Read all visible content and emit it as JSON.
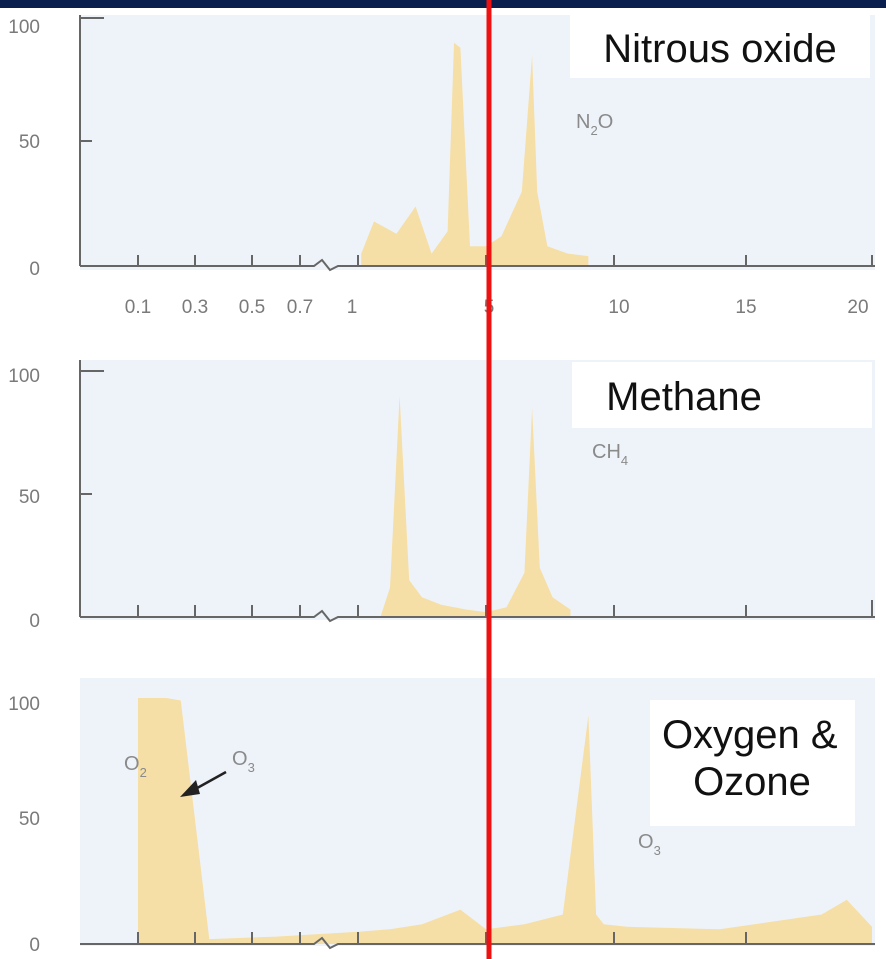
{
  "colors": {
    "band": "#f6dfa6",
    "marker": "#ee1111",
    "background": "#eef3fa",
    "top_band": "#0b1f4f"
  },
  "chart_data": [
    {
      "type": "area",
      "title": "Nitrous oxide",
      "formula": {
        "base": "N",
        "sub": "2",
        "tail": "O"
      },
      "yticks": [
        "0",
        "50",
        "100"
      ],
      "xticks": [
        "0.1",
        "0.3",
        "0.5",
        "0.7",
        "1",
        "5",
        "10",
        "15",
        "20"
      ],
      "ylim": [
        0,
        100
      ],
      "x": [
        1.1,
        1.5,
        2.2,
        2.8,
        3.3,
        3.8,
        4.0,
        4.2,
        4.5,
        5.0,
        5.6,
        6.4,
        6.8,
        7.0,
        7.4,
        8.2,
        9.0
      ],
      "y": [
        5,
        18,
        13,
        24,
        5,
        14,
        90,
        88,
        8,
        8,
        12,
        30,
        85,
        30,
        8,
        5,
        4
      ]
    },
    {
      "type": "area",
      "title": "Methane",
      "formula": {
        "base": "CH",
        "sub": "4",
        "tail": ""
      },
      "yticks": [
        "0",
        "50",
        "100"
      ],
      "ylim": [
        0,
        100
      ],
      "x": [
        1.7,
        2.0,
        2.3,
        2.6,
        3.0,
        3.6,
        4.4,
        5.0,
        5.8,
        6.5,
        6.8,
        7.1,
        7.6,
        8.3
      ],
      "y": [
        0,
        12,
        90,
        15,
        8,
        5,
        3,
        2,
        4,
        18,
        85,
        20,
        8,
        3
      ]
    },
    {
      "type": "area",
      "title": "Oxygen & Ozone",
      "title_lines": [
        "Oxygen &",
        "Ozone"
      ],
      "formula_O2": {
        "base": "O",
        "sub": "2"
      },
      "formula_O3_arrow": {
        "base": "O",
        "sub": "3"
      },
      "formula_O3": {
        "base": "O",
        "sub": "3"
      },
      "yticks": [
        "0",
        "50",
        "100"
      ],
      "ylim": [
        0,
        100
      ],
      "x": [
        0.1,
        0.2,
        0.25,
        0.35,
        0.6,
        1.0,
        2.0,
        3.0,
        4.2,
        5.0,
        6.5,
        8.0,
        9.0,
        9.3,
        9.6,
        10.5,
        14.0,
        18.0,
        19.0,
        20.0
      ],
      "y": [
        100,
        100,
        99,
        2,
        3,
        5,
        6,
        8,
        14,
        6,
        8,
        12,
        93,
        12,
        8,
        7,
        6,
        12,
        18,
        7
      ]
    }
  ]
}
